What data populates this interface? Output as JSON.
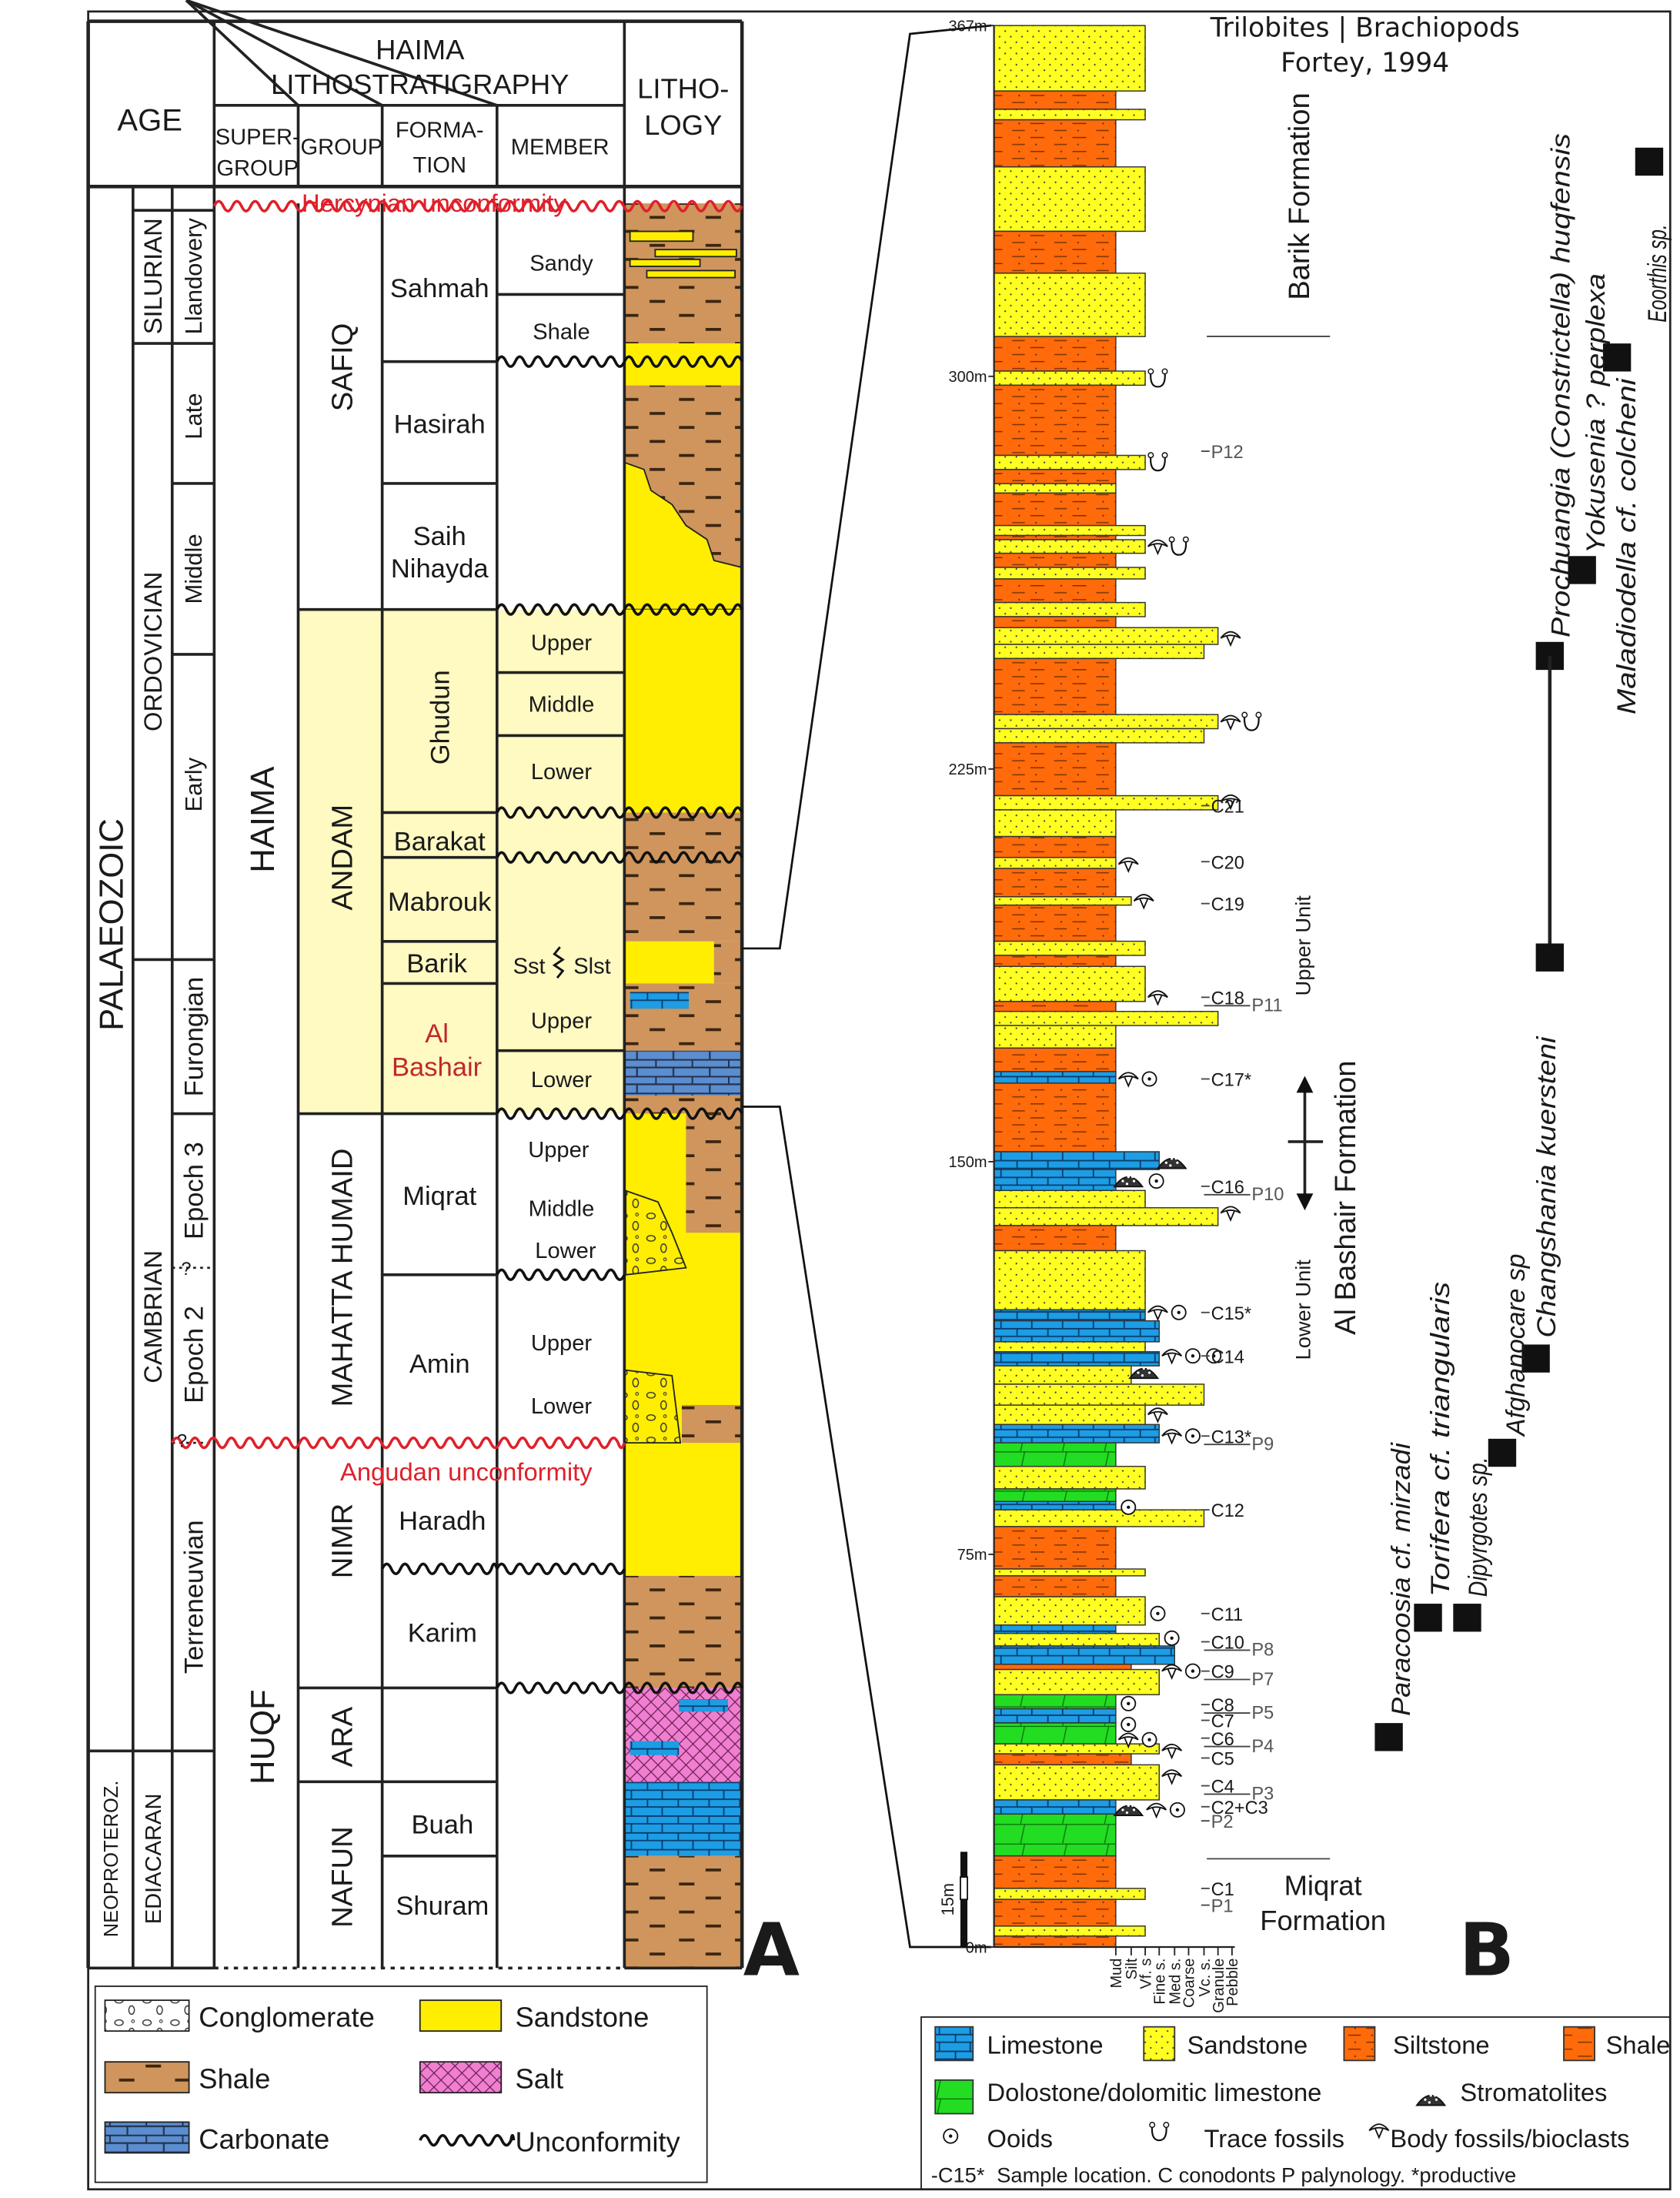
{
  "panel_a": {
    "label": "A",
    "header": {
      "age": "AGE",
      "haima": "HAIMA",
      "lithostratigraphy": "LITHOSTRATIGRAPHY",
      "supergroup_1": "SUPER-",
      "supergroup_2": "GROUP",
      "group": "GROUP",
      "formation_1": "FORMA-",
      "formation_2": "TION",
      "member": "MEMBER",
      "lithology_1": "LITHO-",
      "lithology_2": "LOGY"
    },
    "eons": [
      "PALAEOZOIC",
      "NEOPROTEROZ."
    ],
    "periods": [
      "SILURIAN",
      "ORDOVICIAN",
      "CAMBRIAN",
      "EDIACARAN"
    ],
    "epochs": [
      "Llandovery",
      "Late",
      "Middle",
      "Early",
      "Furongian",
      "Epoch 3",
      "Epoch 2",
      "Terreneuvian"
    ],
    "uncertain_marks": [
      "?",
      "?"
    ],
    "supergroups": [
      "HAIMA",
      "HUQF"
    ],
    "groups": [
      "SAFIQ",
      "ANDAM",
      "MAHATTA HUMAID",
      "NIMR",
      "ARA",
      "NAFUN"
    ],
    "formations": [
      "Sahmah",
      "Hasirah",
      "Saih",
      "Nihayda",
      "Ghudun",
      "Barakat",
      "Mabrouk",
      "Barik",
      "Al",
      "Bashair",
      "Miqrat",
      "Amin",
      "Haradh",
      "Karim",
      "Buah",
      "Shuram"
    ],
    "members": [
      "Sandy",
      "Shale",
      "Upper",
      "Middle",
      "Lower",
      "Sst",
      "Slst",
      "Upper",
      "Lower",
      "Upper",
      "Middle",
      "Lower",
      "Upper",
      "Lower"
    ],
    "unconformities": [
      "Hercynian unconformity",
      "Angudan unconformity"
    ],
    "legend": [
      "Conglomerate",
      "Sandstone",
      "Shale",
      "Salt",
      "Carbonate",
      "Unconformity"
    ]
  },
  "panel_b": {
    "label": "B",
    "title": [
      "Trilobites | Brachiopods",
      "Fortey, 1994"
    ],
    "depth_ticks": [
      {
        "label": "367m",
        "m": 367
      },
      {
        "label": "300m",
        "m": 300
      },
      {
        "label": "225m",
        "m": 225
      },
      {
        "label": "150m",
        "m": 150
      },
      {
        "label": "75m",
        "m": 75
      },
      {
        "label": "0m",
        "m": 0
      }
    ],
    "scale_bar": "15m",
    "grain_sizes": [
      "Mud",
      "Silt",
      "Vf. s",
      "Fine s.",
      "Med s.",
      "Coarse",
      "Vc. s.",
      "Granule",
      "Pebble"
    ],
    "beds": [
      [
        354.5,
        367,
        "sandstone",
        2
      ],
      [
        351,
        354.5,
        "siltstone",
        0
      ],
      [
        349,
        351,
        "sandstone",
        2
      ],
      [
        340,
        349,
        "siltstone",
        0
      ],
      [
        327.7,
        340,
        "sandstone",
        2
      ],
      [
        319.7,
        327.7,
        "siltstone",
        0
      ],
      [
        307.6,
        319.7,
        "sandstone",
        2
      ],
      [
        301,
        307.6,
        "siltstone",
        0
      ],
      [
        298.3,
        301,
        "sandstone",
        2
      ],
      [
        284.9,
        298.3,
        "siltstone",
        0
      ],
      [
        282.2,
        284.9,
        "sandstone",
        2
      ],
      [
        279.5,
        282.2,
        "siltstone",
        0
      ],
      [
        277.7,
        279.5,
        "sandstone",
        0
      ],
      [
        271.5,
        277.7,
        "siltstone",
        0
      ],
      [
        269.6,
        271.5,
        "sandstone",
        2
      ],
      [
        268.8,
        269.6,
        "siltstone",
        0
      ],
      [
        266.2,
        268.8,
        "sandstone",
        2
      ],
      [
        263.5,
        266.2,
        "siltstone",
        0
      ],
      [
        261.3,
        263.5,
        "sandstone",
        2
      ],
      [
        256.8,
        261.3,
        "siltstone",
        0
      ],
      [
        254.1,
        256.8,
        "sandstone",
        2
      ],
      [
        252,
        254.1,
        "siltstone",
        0
      ],
      [
        248.8,
        252,
        "sandstone",
        7
      ],
      [
        246.1,
        248.8,
        "sandstone",
        6
      ],
      [
        235.4,
        246.1,
        "siltstone",
        0
      ],
      [
        232.7,
        235.4,
        "sandstone",
        7
      ],
      [
        230,
        232.7,
        "sandstone",
        6
      ],
      [
        219.9,
        230,
        "siltstone",
        0
      ],
      [
        217.2,
        219.9,
        "sandstone",
        7
      ],
      [
        212.1,
        217.2,
        "sandstone",
        0
      ],
      [
        208.1,
        212.1,
        "siltstone",
        0
      ],
      [
        206,
        208.1,
        "sandstone",
        0
      ],
      [
        200.6,
        206,
        "siltstone",
        0
      ],
      [
        199,
        200.6,
        "sandstone",
        1
      ],
      [
        192.1,
        199,
        "siltstone",
        0
      ],
      [
        189.4,
        192.1,
        "sandstone",
        2
      ],
      [
        187.3,
        189.4,
        "siltstone",
        0
      ],
      [
        180.6,
        187.3,
        "sandstone",
        2
      ],
      [
        178.7,
        180.6,
        "shale",
        0
      ],
      [
        176,
        178.7,
        "sandstone",
        7
      ],
      [
        171.7,
        176,
        "sandstone",
        0
      ],
      [
        167.2,
        171.7,
        "siltstone",
        0
      ],
      [
        165,
        167.2,
        "limestone",
        0
      ],
      [
        151.9,
        165,
        "siltstone",
        0
      ],
      [
        148.5,
        151.9,
        "limestone",
        3
      ],
      [
        144.5,
        148.5,
        "limestone",
        0
      ],
      [
        141.2,
        144.5,
        "sandstone",
        2
      ],
      [
        137.8,
        141.2,
        "sandstone",
        7
      ],
      [
        133,
        137.8,
        "siltstone",
        0
      ],
      [
        121.7,
        133,
        "sandstone",
        2
      ],
      [
        119.6,
        121.7,
        "limestone",
        2
      ],
      [
        115.6,
        119.6,
        "limestone",
        3
      ],
      [
        113.7,
        115.6,
        "sandstone",
        2
      ],
      [
        111,
        113.7,
        "limestone",
        3
      ],
      [
        107.5,
        111,
        "sandstone",
        1
      ],
      [
        103.5,
        107.5,
        "sandstone",
        6
      ],
      [
        99.8,
        103.5,
        "sandstone",
        2
      ],
      [
        96.3,
        99.8,
        "limestone",
        3
      ],
      [
        91.8,
        96.3,
        "dolostone",
        0
      ],
      [
        87.5,
        91.8,
        "sandstone",
        2
      ],
      [
        85.1,
        87.5,
        "dolostone",
        0
      ],
      [
        83.5,
        85.1,
        "limestone",
        0
      ],
      [
        80.3,
        83.5,
        "sandstone",
        6
      ],
      [
        72.2,
        80.3,
        "siltstone",
        0
      ],
      [
        70.9,
        72.2,
        "sandstone",
        2
      ],
      [
        66.9,
        70.9,
        "siltstone",
        0
      ],
      [
        61.5,
        66.9,
        "sandstone",
        2
      ],
      [
        59.9,
        61.5,
        "limestone",
        0
      ],
      [
        57.5,
        59.9,
        "sandstone",
        3
      ],
      [
        54,
        57.5,
        "limestone",
        4
      ],
      [
        53,
        54,
        "siltstone",
        1
      ],
      [
        48.2,
        53,
        "sandstone",
        3
      ],
      [
        45.5,
        48.2,
        "dolostone",
        0
      ],
      [
        42.8,
        45.5,
        "limestone",
        0
      ],
      [
        38.8,
        42.8,
        "dolostone",
        0
      ],
      [
        36.9,
        38.8,
        "sandstone",
        3
      ],
      [
        34.8,
        36.9,
        "siltstone",
        1
      ],
      [
        28.1,
        34.8,
        "sandstone",
        3
      ],
      [
        25.4,
        28.1,
        "limestone",
        0
      ],
      [
        17.4,
        25.4,
        "dolostone",
        0
      ],
      [
        11.2,
        17.4,
        "siltstone",
        0
      ],
      [
        9.1,
        11.2,
        "sandstone",
        2
      ],
      [
        4,
        9.1,
        "siltstone",
        0
      ],
      [
        2.1,
        4,
        "sandstone",
        2
      ],
      [
        0,
        2.1,
        "siltstone",
        0
      ]
    ],
    "symbols": [
      {
        "m": 299.6,
        "icons": [
          "trace"
        ]
      },
      {
        "m": 283.6,
        "icons": [
          "trace"
        ]
      },
      {
        "m": 267.5,
        "icons": [
          "body",
          "trace"
        ]
      },
      {
        "m": 250,
        "icons": [
          "body"
        ]
      },
      {
        "m": 234,
        "icons": [
          "body",
          "trace"
        ]
      },
      {
        "m": 218.8,
        "icons": [
          "body"
        ]
      },
      {
        "m": 206.8,
        "icons": [
          "body"
        ]
      },
      {
        "m": 199.8,
        "icons": [
          "body"
        ]
      },
      {
        "m": 181.4,
        "icons": [
          "body"
        ]
      },
      {
        "m": 165.8,
        "icons": [
          "body",
          "ooid"
        ]
      },
      {
        "m": 149.8,
        "icons": [
          "stromatolite"
        ]
      },
      {
        "m": 146.3,
        "icons": [
          "stromatolite",
          "ooid"
        ]
      },
      {
        "m": 140.2,
        "icons": [
          "body"
        ]
      },
      {
        "m": 121.2,
        "icons": [
          "body",
          "ooid"
        ]
      },
      {
        "m": 112.9,
        "icons": [
          "body",
          "ooid",
          "ooid"
        ]
      },
      {
        "m": 109.7,
        "icons": [
          "stromatolite"
        ]
      },
      {
        "m": 101.7,
        "icons": [
          "body"
        ]
      },
      {
        "m": 97.6,
        "icons": [
          "body",
          "ooid"
        ]
      },
      {
        "m": 84,
        "icons": [
          "ooid"
        ]
      },
      {
        "m": 63.7,
        "icons": [
          "ooid"
        ]
      },
      {
        "m": 59,
        "icons": [
          "ooid"
        ]
      },
      {
        "m": 52.7,
        "icons": [
          "body",
          "ooid"
        ]
      },
      {
        "m": 46.5,
        "icons": [
          "ooid"
        ]
      },
      {
        "m": 42.5,
        "icons": [
          "ooid"
        ]
      },
      {
        "m": 39.6,
        "icons": [
          "body",
          "ooid"
        ]
      },
      {
        "m": 37.5,
        "icons": [
          "body"
        ]
      },
      {
        "m": 32.6,
        "icons": [
          "body"
        ]
      },
      {
        "m": 26.2,
        "icons": [
          "stromatolite",
          "body",
          "ooid"
        ]
      }
    ],
    "samples": [
      {
        "c": "C21",
        "m": 218
      },
      {
        "c": "C20",
        "m": 207.3
      },
      {
        "c": "C19",
        "m": 199.3
      },
      {
        "c": "C18",
        "p": "P11",
        "m": 181.4
      },
      {
        "c": "C17*",
        "m": 165.8
      },
      {
        "c": "C16",
        "p": "P10",
        "m": 145.3
      },
      {
        "c": "C15*",
        "m": 121.2
      },
      {
        "c": "C14",
        "m": 112.9
      },
      {
        "c": "C13*",
        "p": "P9",
        "m": 97.6
      },
      {
        "c": "C12",
        "m": 83.5
      },
      {
        "c": "C11",
        "m": 63.7
      },
      {
        "c": "C10",
        "p": "P8",
        "m": 58.3
      },
      {
        "c": "C9",
        "p": "P7",
        "m": 52.7
      },
      {
        "c": "C8",
        "p": "P5",
        "m": 46.3
      },
      {
        "c": "C7",
        "m": 43.3
      },
      {
        "c": "C6",
        "p": "P4",
        "m": 39.9
      },
      {
        "c": "C5",
        "m": 36.1
      },
      {
        "c": "C4",
        "p": "P3",
        "m": 30.8
      },
      {
        "c": "C2+C3",
        "m": 26.8
      },
      {
        "c": "P2",
        "m": 24.1,
        "palyno": true
      },
      {
        "c": "C1",
        "m": 11.2
      },
      {
        "c": "P1",
        "m": 8,
        "palyno": true
      },
      {
        "c": "P12",
        "m": 285.7,
        "palyno": true
      }
    ],
    "units": {
      "barik": "Barik Formation",
      "upper_unit": "Upper Unit",
      "al_bashair": "Al Bashair Formation",
      "lower_unit": "Lower Unit",
      "miqrat_1": "Miqrat",
      "miqrat_2": "Formation"
    },
    "fossils": [
      {
        "name": "Eoorthis sp.",
        "m": 341
      },
      {
        "name": "Maladiodella cf. colcheni",
        "m": 303.6
      },
      {
        "name": "Yokusenia ? perplexa",
        "m": 263
      },
      {
        "name": "Prochuangia (Constrictella) huqfensis",
        "m": 246.6,
        "m_base": 189
      },
      {
        "name": "Changshania kuersteni",
        "m": 112.4
      },
      {
        "name": "Afghanocare sp",
        "m": 94.4
      },
      {
        "name": "Dipyrgotes sp.",
        "m": 62.9
      },
      {
        "name": "Torifera cf. triangularis",
        "m": 62.9
      },
      {
        "name": "Paracoosia cf. mirzadi",
        "m": 40.1
      }
    ],
    "legend": {
      "items": [
        "Limestone",
        "Sandstone",
        "Siltstone",
        "Shale",
        "Dolostone/dolomitic limestone",
        "Stromatolites",
        "Ooids",
        "Trace fossils",
        "Body fossils/bioclasts"
      ],
      "note_sample": "-C15*",
      "note": "Sample location. C conodonts P palynology. *productive"
    }
  },
  "colors": {
    "sandstone": "#ffee00",
    "shale_a": "#cf955c",
    "carbonate_a": "#5b8dcf",
    "salt": "#f07fd2",
    "siltstone": "#ff6a0a",
    "limestone": "#1c9de4",
    "dolostone": "#22dd22",
    "andam_highlight": "#fff9c2",
    "unconformity_red": "#e0202a",
    "al_bashair_red": "#c0282d"
  }
}
